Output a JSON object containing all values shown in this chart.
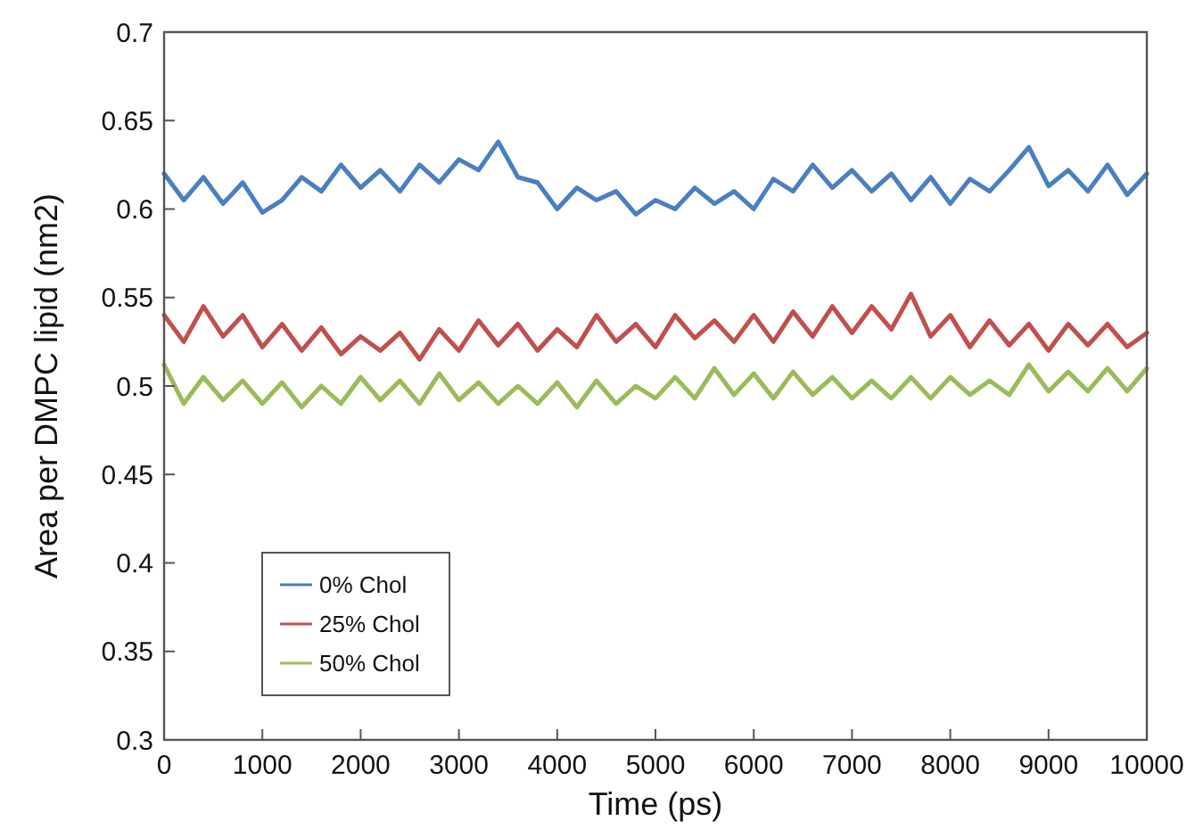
{
  "chart_data": {
    "type": "line",
    "xlabel": "Time (ps)",
    "ylabel": "Area per DMPC lipid (nm2)",
    "x": [
      0,
      200,
      400,
      600,
      800,
      1000,
      1200,
      1400,
      1600,
      1800,
      2000,
      2200,
      2400,
      2600,
      2800,
      3000,
      3200,
      3400,
      3600,
      3800,
      4000,
      4200,
      4400,
      4600,
      4800,
      5000,
      5200,
      5400,
      5600,
      5800,
      6000,
      6200,
      6400,
      6600,
      6800,
      7000,
      7200,
      7400,
      7600,
      7800,
      8000,
      8200,
      8400,
      8600,
      8800,
      9000,
      9200,
      9400,
      9600,
      9800,
      10000
    ],
    "series": [
      {
        "name": "0% Chol",
        "color": "#4a7fc1",
        "values": [
          0.62,
          0.605,
          0.618,
          0.603,
          0.615,
          0.598,
          0.605,
          0.618,
          0.61,
          0.625,
          0.612,
          0.622,
          0.61,
          0.625,
          0.615,
          0.628,
          0.622,
          0.638,
          0.618,
          0.615,
          0.6,
          0.612,
          0.605,
          0.61,
          0.597,
          0.605,
          0.6,
          0.612,
          0.603,
          0.61,
          0.6,
          0.617,
          0.61,
          0.625,
          0.612,
          0.622,
          0.61,
          0.62,
          0.605,
          0.618,
          0.603,
          0.617,
          0.61,
          0.622,
          0.635,
          0.613,
          0.622,
          0.61,
          0.625,
          0.608,
          0.62
        ]
      },
      {
        "name": "25% Chol",
        "color": "#c0504d",
        "values": [
          0.54,
          0.525,
          0.545,
          0.528,
          0.54,
          0.522,
          0.535,
          0.52,
          0.533,
          0.518,
          0.528,
          0.52,
          0.53,
          0.515,
          0.532,
          0.52,
          0.537,
          0.523,
          0.535,
          0.52,
          0.532,
          0.522,
          0.54,
          0.525,
          0.535,
          0.522,
          0.54,
          0.527,
          0.537,
          0.525,
          0.54,
          0.525,
          0.542,
          0.528,
          0.545,
          0.53,
          0.545,
          0.532,
          0.552,
          0.528,
          0.54,
          0.522,
          0.537,
          0.523,
          0.535,
          0.52,
          0.535,
          0.523,
          0.535,
          0.522,
          0.53
        ]
      },
      {
        "name": "50% Chol",
        "color": "#9bbb59",
        "values": [
          0.512,
          0.49,
          0.505,
          0.492,
          0.503,
          0.49,
          0.502,
          0.488,
          0.5,
          0.49,
          0.505,
          0.492,
          0.503,
          0.49,
          0.507,
          0.492,
          0.502,
          0.49,
          0.5,
          0.49,
          0.502,
          0.488,
          0.503,
          0.49,
          0.5,
          0.493,
          0.505,
          0.493,
          0.51,
          0.495,
          0.507,
          0.493,
          0.508,
          0.495,
          0.505,
          0.493,
          0.503,
          0.493,
          0.505,
          0.493,
          0.505,
          0.495,
          0.503,
          0.495,
          0.512,
          0.497,
          0.508,
          0.497,
          0.51,
          0.497,
          0.51
        ]
      }
    ],
    "xlim": [
      0,
      10000
    ],
    "xticks": [
      0,
      1000,
      2000,
      3000,
      4000,
      5000,
      6000,
      7000,
      8000,
      9000,
      10000
    ],
    "ylim": [
      0.3,
      0.7
    ],
    "yticks": [
      0.3,
      0.35,
      0.4,
      0.45,
      0.5,
      0.55,
      0.6,
      0.65,
      0.7
    ],
    "grid": false,
    "legend": "bottom left",
    "line_style": "solid",
    "marker": "none"
  }
}
